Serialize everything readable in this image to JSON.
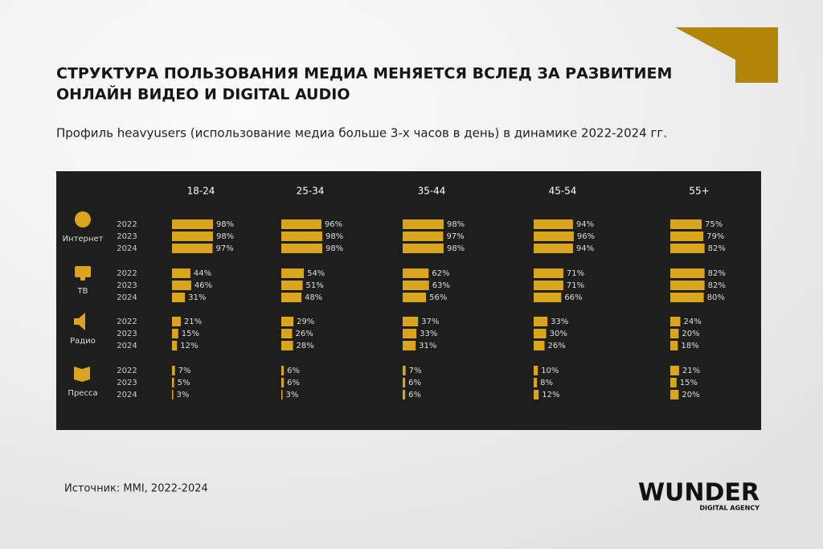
{
  "header": {
    "title_line1": "СТРУКТУРА ПОЛЬЗОВАНИЯ МЕДИА МЕНЯЕТСЯ ВСЛЕД ЗА РАЗВИТИЕМ",
    "title_line2": "ОНЛАЙН ВИДЕО И DIGITAL AUDIO",
    "subtitle": "Профиль heavyusers (использование медиа больше 3-х часов в день) в динамике 2022-2024 гг."
  },
  "chart_data": {
    "type": "bar-grid",
    "xlim": [
      0,
      100
    ],
    "color": "#d9a51c",
    "media": [
      "Интернет",
      "ТВ",
      "Радио",
      "Пресса"
    ],
    "years": [
      "2022",
      "2023",
      "2024"
    ],
    "series": [
      {
        "name": "18-24",
        "values": [
          [
            98,
            98,
            97
          ],
          [
            44,
            46,
            31
          ],
          [
            21,
            15,
            12
          ],
          [
            7,
            5,
            3
          ]
        ],
        "value_labels": [
          [
            "98%",
            "98%",
            "97%"
          ],
          [
            "44%",
            "46%",
            "31%"
          ],
          [
            "21%",
            "15%",
            "12%"
          ],
          [
            "7%",
            "5%",
            "3%"
          ]
        ]
      },
      {
        "name": "25-34",
        "values": [
          [
            96,
            98,
            98
          ],
          [
            54,
            51,
            48
          ],
          [
            29,
            26,
            28
          ],
          [
            6,
            6,
            3
          ]
        ],
        "value_labels": [
          [
            "96%",
            "98%",
            "98%"
          ],
          [
            "54%",
            "51%",
            "48%"
          ],
          [
            "29%",
            "26%",
            "28%"
          ],
          [
            "6%",
            "6%",
            "3%"
          ]
        ]
      },
      {
        "name": "35-44",
        "values": [
          [
            98,
            97,
            98
          ],
          [
            62,
            63,
            56
          ],
          [
            37,
            33,
            31
          ],
          [
            7,
            6,
            6
          ]
        ],
        "value_labels": [
          [
            "98%",
            "97%",
            "98%"
          ],
          [
            "62%",
            "63%",
            "56%"
          ],
          [
            "37%",
            "33%",
            "31%"
          ],
          [
            "7%",
            "6%",
            "6%"
          ]
        ]
      },
      {
        "name": "45-54",
        "values": [
          [
            94,
            96,
            94
          ],
          [
            71,
            71,
            66
          ],
          [
            33,
            30,
            26
          ],
          [
            10,
            8,
            12
          ]
        ],
        "value_labels": [
          [
            "94%",
            "96%",
            "94%"
          ],
          [
            "71%",
            "71%",
            "66%"
          ],
          [
            "33%",
            "30%",
            "26%"
          ],
          [
            "10%",
            "8%",
            "12%"
          ]
        ]
      },
      {
        "name": "55+",
        "values": [
          [
            75,
            79,
            82
          ],
          [
            82,
            82,
            80
          ],
          [
            24,
            20,
            18
          ],
          [
            21,
            15,
            20
          ]
        ],
        "value_labels": [
          [
            "75%",
            "79%",
            "82%"
          ],
          [
            "82%",
            "82%",
            "80%"
          ],
          [
            "24%",
            "20%",
            "18%"
          ],
          [
            "21%",
            "15%",
            "20%"
          ]
        ]
      }
    ]
  },
  "footer": {
    "source": "Источник: MMI, 2022-2024",
    "logo": "WUNDER",
    "logo_sub": "DIGITAL AGENCY"
  }
}
